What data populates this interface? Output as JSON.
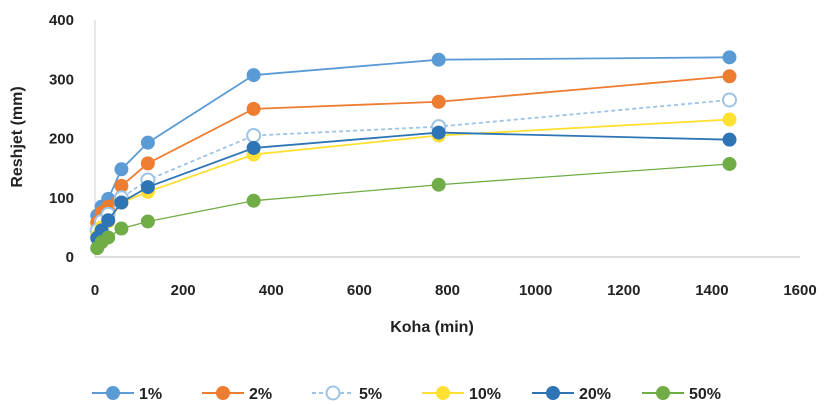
{
  "chart_data": {
    "type": "line",
    "title": "",
    "xlabel": "Koha (min)",
    "ylabel": "Reshjet (mm)",
    "xlim": [
      0,
      1600
    ],
    "ylim": [
      0,
      400
    ],
    "xticks": [
      0,
      200,
      400,
      600,
      800,
      1000,
      1200,
      1400,
      1600
    ],
    "yticks": [
      0,
      100,
      200,
      300,
      400
    ],
    "x": [
      5,
      15,
      30,
      60,
      120,
      360,
      780,
      1440
    ],
    "grid": false,
    "legend_position": "bottom",
    "series": [
      {
        "name": "1%",
        "color": "#5b9bd5",
        "marker": "filled",
        "line": "solid",
        "values": [
          70,
          85,
          98,
          148,
          193,
          307,
          333,
          337
        ]
      },
      {
        "name": "2%",
        "color": "#ed7d31",
        "marker": "filled",
        "line": "solid",
        "values": [
          58,
          75,
          85,
          120,
          158,
          250,
          262,
          305
        ]
      },
      {
        "name": "5%",
        "color": "#9dc3e6",
        "marker": "hollow",
        "line": "dashed",
        "values": [
          45,
          60,
          72,
          100,
          130,
          205,
          220,
          265
        ]
      },
      {
        "name": "10%",
        "color": "#ffe033",
        "marker": "filled",
        "line": "solid",
        "values": [
          35,
          50,
          60,
          92,
          110,
          173,
          205,
          232
        ]
      },
      {
        "name": "20%",
        "color": "#2e75b6",
        "marker": "filled",
        "line": "solid",
        "values": [
          32,
          45,
          62,
          92,
          118,
          184,
          210,
          198
        ]
      },
      {
        "name": "50%",
        "color": "#70ad47",
        "marker": "filled",
        "line": "solid",
        "values": [
          15,
          25,
          33,
          48,
          60,
          95,
          122,
          157
        ]
      }
    ]
  }
}
